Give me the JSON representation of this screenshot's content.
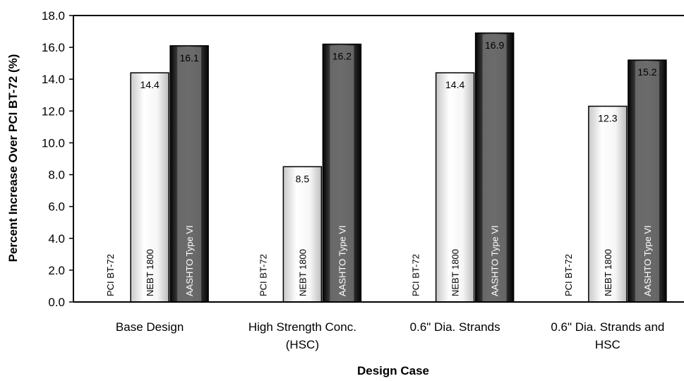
{
  "chart_data": {
    "type": "bar",
    "xlabel": "Design Case",
    "ylabel": "Percent Increase Over PCI BT-72 (%)",
    "ylim": [
      0,
      18
    ],
    "ytick_labels": [
      "0.0",
      "2.0",
      "4.0",
      "6.0",
      "8.0",
      "10.0",
      "12.0",
      "14.0",
      "16.0",
      "18.0"
    ],
    "grid": false,
    "categories": [
      [
        "Base Design"
      ],
      [
        "High Strength Conc.",
        "(HSC)"
      ],
      [
        "0.6\" Dia. Strands"
      ],
      [
        "0.6\" Dia. Strands and",
        "HSC"
      ]
    ],
    "series": [
      {
        "name": "PCI BT-72",
        "values": [
          0,
          0,
          0,
          0
        ],
        "style": "none",
        "color": "#ffffff"
      },
      {
        "name": "NEBT 1800",
        "values": [
          14.4,
          8.5,
          14.4,
          12.3
        ],
        "style": "light",
        "color": "#f2f2f2"
      },
      {
        "name": "AASHTO Type VI",
        "values": [
          16.1,
          16.2,
          16.9,
          15.2
        ],
        "style": "dark",
        "color": "#3a3a3a"
      }
    ],
    "data_labels": [
      [
        null,
        "14.4",
        "16.1"
      ],
      [
        null,
        "8.5",
        "16.2"
      ],
      [
        null,
        "14.4",
        "16.9"
      ],
      [
        null,
        "12.3",
        "15.2"
      ]
    ]
  }
}
